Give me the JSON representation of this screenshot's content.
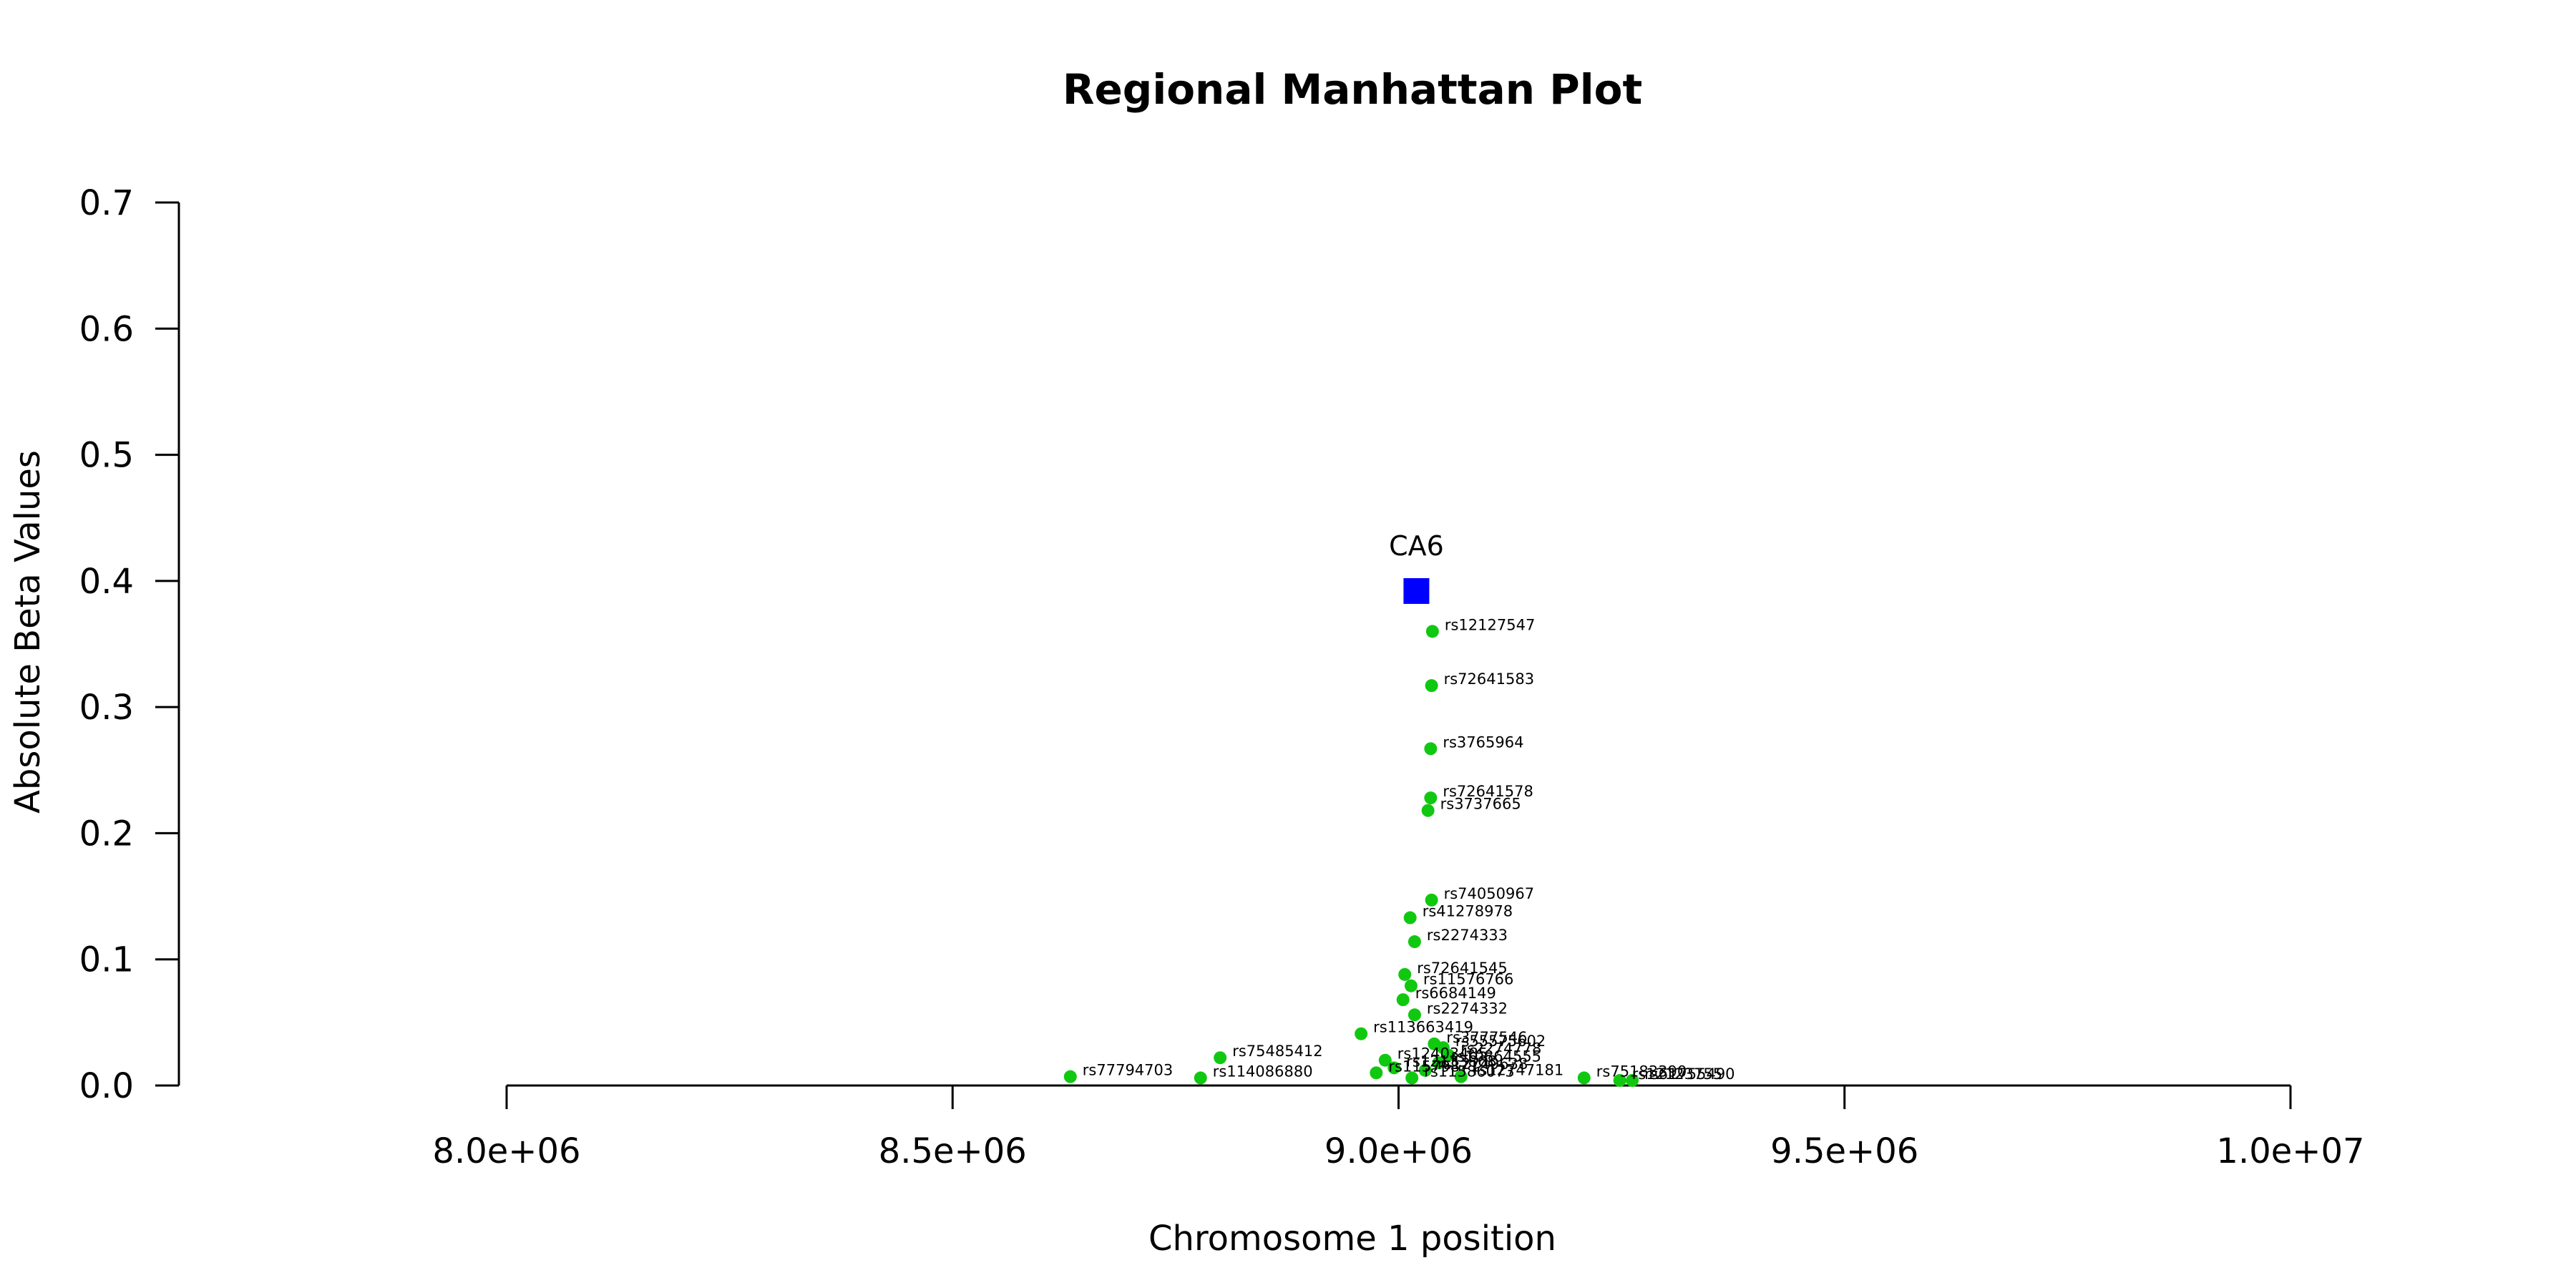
{
  "chart_data": {
    "type": "scatter",
    "title": "Regional Manhattan Plot",
    "xlabel": "Chromosome 1 position",
    "ylabel": "Absolute Beta Values",
    "xlim": [
      8000000,
      10000000
    ],
    "ylim": [
      0,
      0.7
    ],
    "x_ticks": [
      8000000,
      8500000,
      9000000,
      9500000,
      10000000
    ],
    "x_tick_labels": [
      "8.0e+06",
      "8.5e+06",
      "9.0e+06",
      "9.5e+06",
      "1.0e+07"
    ],
    "y_ticks": [
      0,
      0.1,
      0.2,
      0.3,
      0.4,
      0.5,
      0.6,
      0.7
    ],
    "y_tick_labels": [
      "0.0",
      "0.1",
      "0.2",
      "0.3",
      "0.4",
      "0.5",
      "0.6",
      "0.7"
    ],
    "grid": false,
    "colors": {
      "snp": "#11c811",
      "gene": "#0000ff"
    },
    "gene": {
      "name": "CA6",
      "x": 9020000,
      "y": 0.392
    },
    "snps": [
      {
        "name": "rs12127547",
        "x": 9038000,
        "y": 0.36
      },
      {
        "name": "rs72641583",
        "x": 9037000,
        "y": 0.317
      },
      {
        "name": "rs3765964",
        "x": 9036000,
        "y": 0.267
      },
      {
        "name": "rs72641578",
        "x": 9036000,
        "y": 0.228
      },
      {
        "name": "rs3737665",
        "x": 9033000,
        "y": 0.218
      },
      {
        "name": "rs74050967",
        "x": 9037000,
        "y": 0.147
      },
      {
        "name": "rs41278978",
        "x": 9013000,
        "y": 0.133
      },
      {
        "name": "rs2274333",
        "x": 9018000,
        "y": 0.114
      },
      {
        "name": "rs72641545",
        "x": 9007000,
        "y": 0.088
      },
      {
        "name": "rs11576766",
        "x": 9014000,
        "y": 0.079
      },
      {
        "name": "rs6684149",
        "x": 9005000,
        "y": 0.068
      },
      {
        "name": "rs2274332",
        "x": 9018000,
        "y": 0.056
      },
      {
        "name": "rs113663419",
        "x": 8958000,
        "y": 0.041
      },
      {
        "name": "rs3777546",
        "x": 9040000,
        "y": 0.033
      },
      {
        "name": "rs55575602",
        "x": 9050000,
        "y": 0.03
      },
      {
        "name": "rs75485412",
        "x": 8800000,
        "y": 0.022
      },
      {
        "name": "rs2274778",
        "x": 9056000,
        "y": 0.024
      },
      {
        "name": "rs12403485",
        "x": 8985000,
        "y": 0.02
      },
      {
        "name": "rs10864555",
        "x": 9045000,
        "y": 0.018
      },
      {
        "name": "rs12133868",
        "x": 8995000,
        "y": 0.014
      },
      {
        "name": "rs12749638",
        "x": 9030000,
        "y": 0.012
      },
      {
        "name": "rs77794703",
        "x": 8632000,
        "y": 0.007
      },
      {
        "name": "rs114086880",
        "x": 8778000,
        "y": 0.006
      },
      {
        "name": "rs11579871",
        "x": 8975000,
        "y": 0.01
      },
      {
        "name": "rs12747181",
        "x": 9070000,
        "y": 0.007
      },
      {
        "name": "rs11586073",
        "x": 9015000,
        "y": 0.006
      },
      {
        "name": "rs75183390",
        "x": 9208000,
        "y": 0.006
      },
      {
        "name": "rs12123755",
        "x": 9248000,
        "y": 0.004
      },
      {
        "name": "rs61755490",
        "x": 9262000,
        "y": 0.004
      }
    ]
  }
}
